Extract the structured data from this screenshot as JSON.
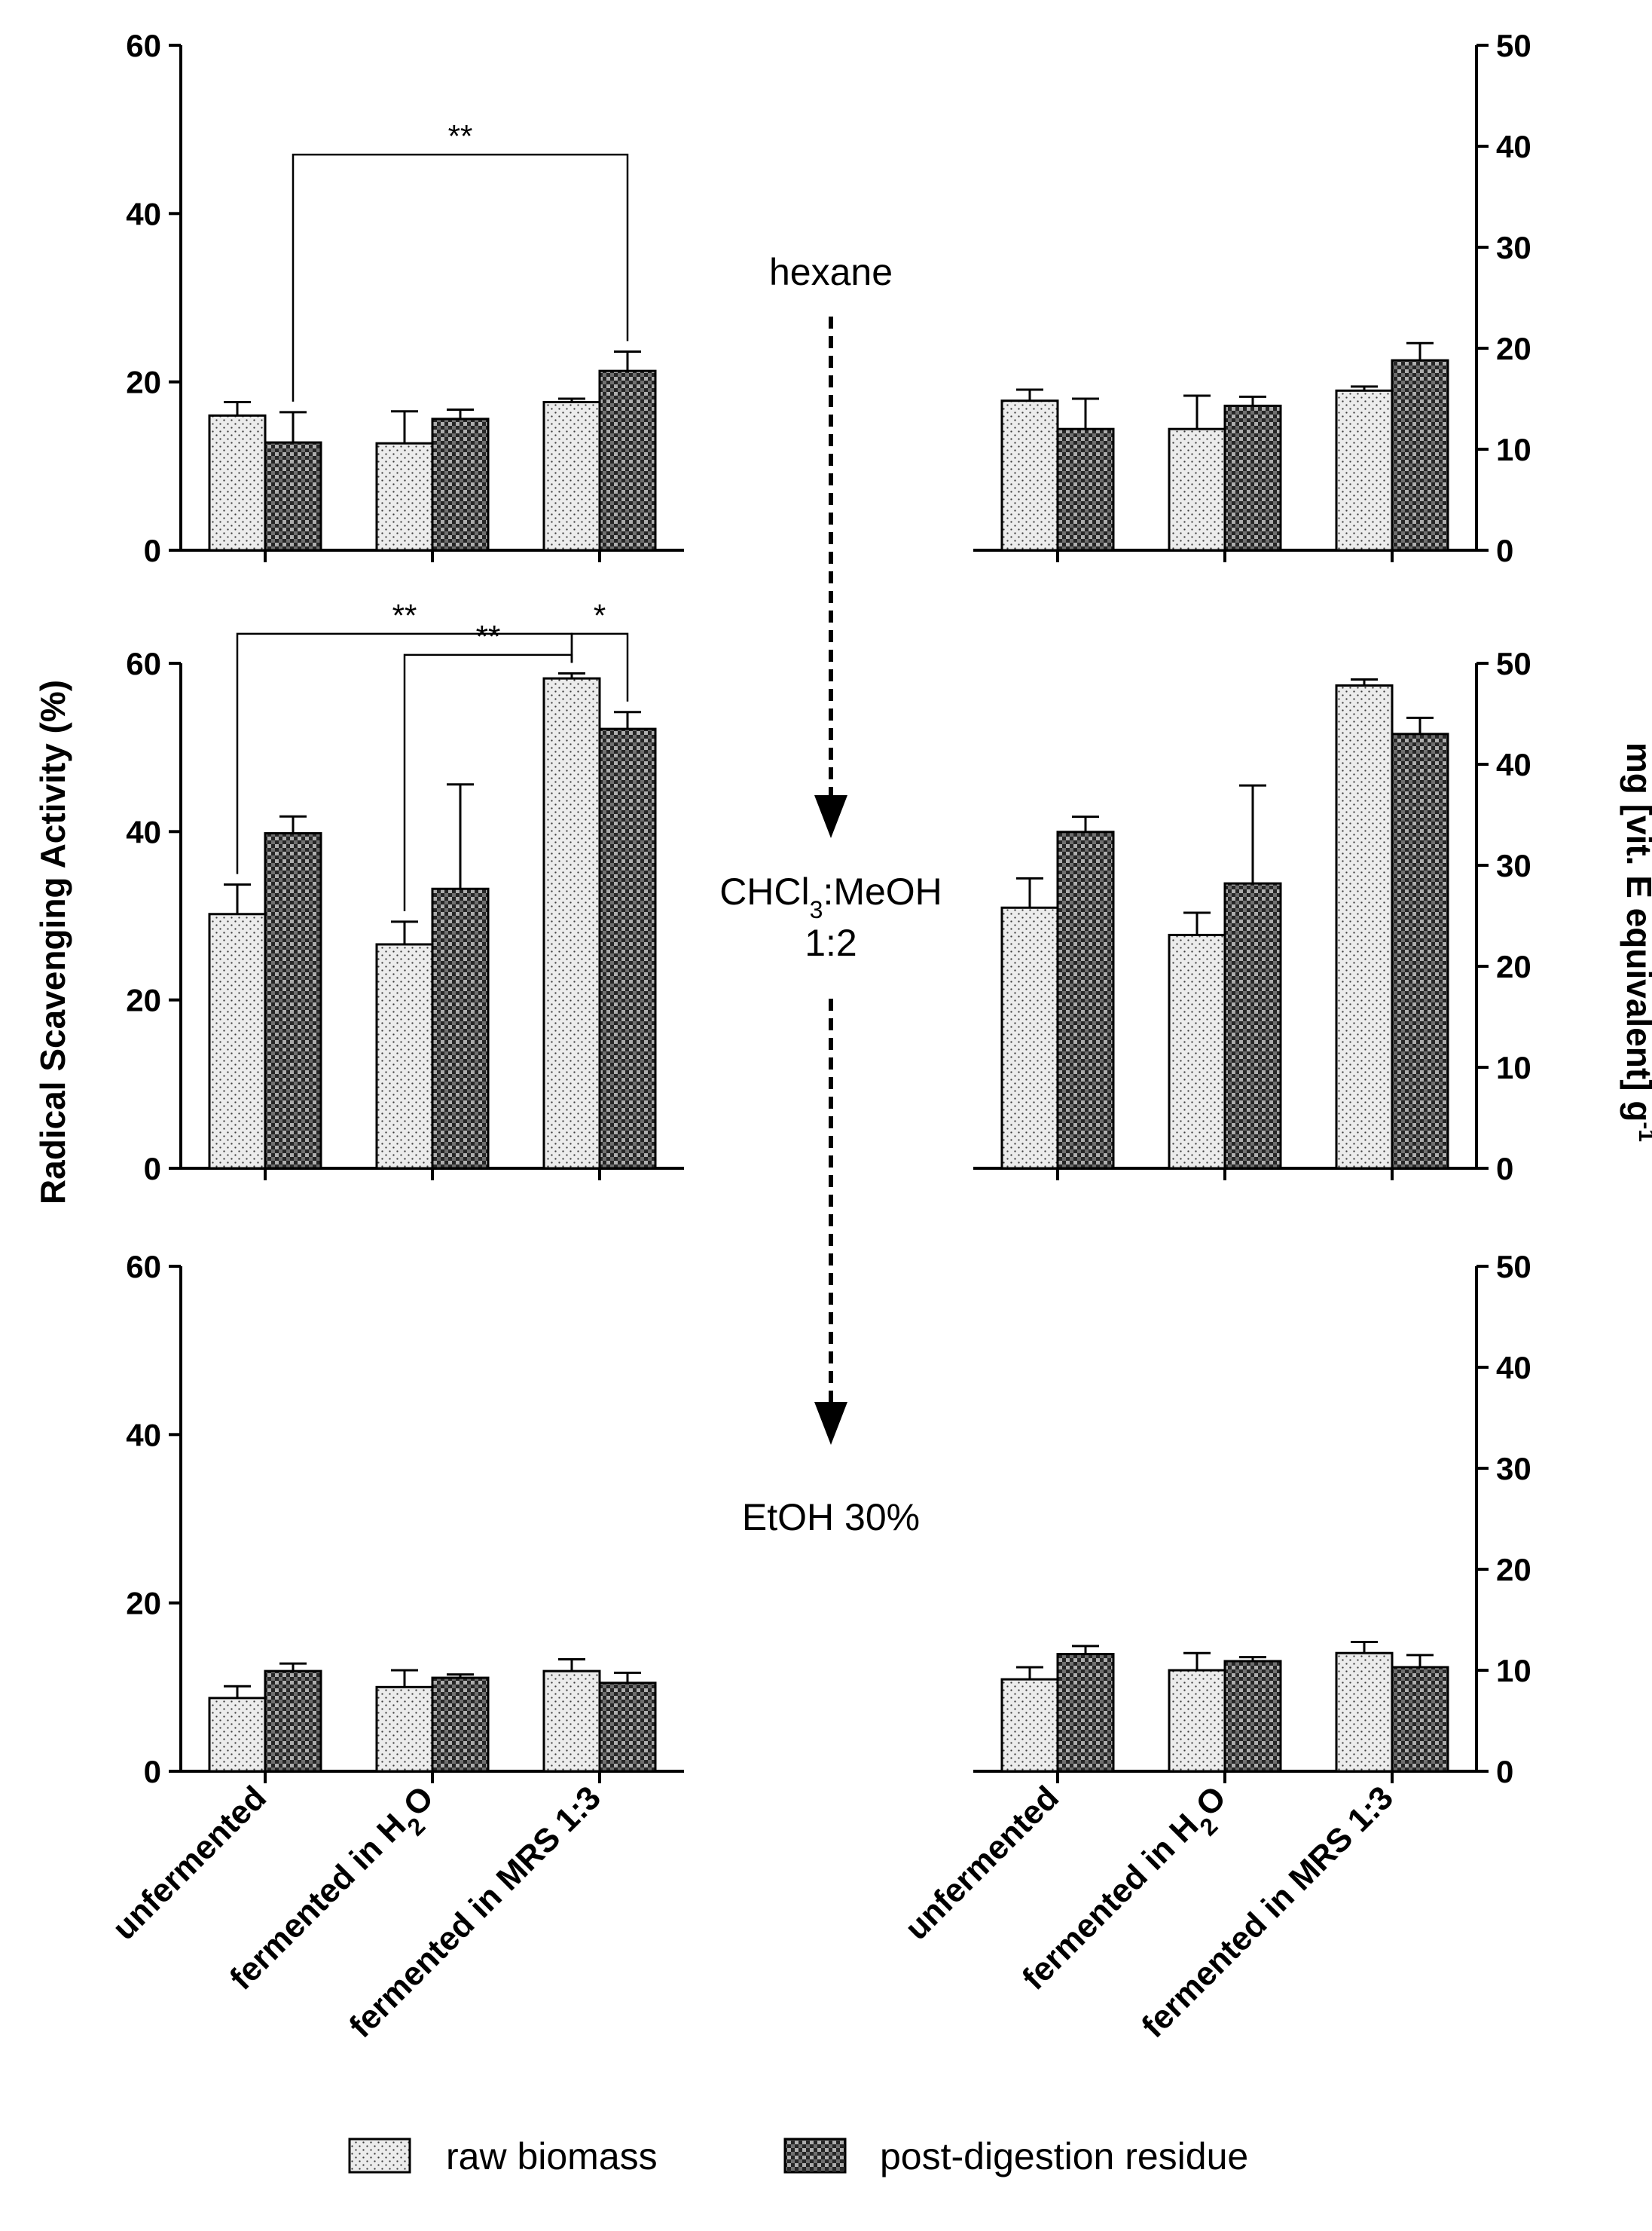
{
  "chart_data": {
    "type": "bar",
    "ylabel_left": "Radical Scavenging Activity (%)",
    "ylabel_right": {
      "main": "mg [vit. E equivalent] g",
      "sup": "-1"
    },
    "categories": [
      {
        "parts": [
          {
            "t": "unfermented"
          }
        ]
      },
      {
        "parts": [
          {
            "t": "fermented in H"
          },
          {
            "t": "2",
            "sub": true
          },
          {
            "t": "O"
          }
        ]
      },
      {
        "parts": [
          {
            "t": "fermented in MRS 1:3"
          }
        ]
      }
    ],
    "series_names": [
      "raw biomass",
      "post-digestion residue"
    ],
    "left_axis": {
      "ylim": [
        0,
        60
      ],
      "ticks": [
        "0",
        "20",
        "40",
        "60"
      ]
    },
    "right_axis": {
      "ylim": [
        0,
        50
      ],
      "ticks": [
        "0",
        "10",
        "20",
        "30",
        "40",
        "50"
      ]
    },
    "panels": [
      {
        "solvent": {
          "lines": [
            [
              {
                "t": "hexane"
              }
            ]
          ]
        },
        "left": {
          "series": [
            {
              "name": "raw biomass",
              "values": [
                16,
                12.7,
                17.6
              ],
              "errors": [
                1.6,
                3.8,
                0.4
              ]
            },
            {
              "name": "post-digestion residue",
              "values": [
                12.8,
                15.6,
                21.3
              ],
              "errors": [
                3.6,
                1.1,
                2.3
              ]
            }
          ]
        },
        "right": {
          "series": [
            {
              "name": "raw biomass",
              "values": [
                14.8,
                12,
                15.8
              ],
              "errors": [
                1.1,
                3.3,
                0.4
              ]
            },
            {
              "name": "post-digestion residue",
              "values": [
                12,
                14.3,
                18.8
              ],
              "errors": [
                3,
                0.9,
                1.7
              ]
            }
          ]
        },
        "significance": [
          {
            "label": "**",
            "from_cat": 0,
            "from_series": 1,
            "to_cat": 2,
            "to_series": 1,
            "level": 47
          }
        ]
      },
      {
        "solvent": {
          "lines": [
            [
              {
                "t": "CHCl"
              },
              {
                "t": "3",
                "sub": true
              },
              {
                "t": ":MeOH"
              }
            ],
            [
              {
                "t": "1:2"
              }
            ]
          ]
        },
        "left": {
          "series": [
            {
              "name": "raw biomass",
              "values": [
                30.2,
                26.6,
                58.2
              ],
              "errors": [
                3.5,
                2.7,
                0.6
              ]
            },
            {
              "name": "post-digestion residue",
              "values": [
                39.8,
                33.2,
                52.2
              ],
              "errors": [
                2,
                12.4,
                2
              ]
            }
          ]
        },
        "right": {
          "series": [
            {
              "name": "raw biomass",
              "values": [
                25.8,
                23.1,
                47.8
              ],
              "errors": [
                2.9,
                2.2,
                0.6
              ]
            },
            {
              "name": "post-digestion residue",
              "values": [
                33.3,
                28.2,
                43
              ],
              "errors": [
                1.5,
                9.7,
                1.6
              ]
            }
          ]
        },
        "significance": [
          {
            "label": "**",
            "from_cat": 0,
            "from_series": 0,
            "to_cat": 2,
            "to_series": 0,
            "level": 63.5
          },
          {
            "label": "**",
            "from_cat": 1,
            "from_series": 0,
            "to_cat": 2,
            "to_series": 0,
            "level": 61
          },
          {
            "label": "*",
            "from_cat": 2,
            "from_series": 0,
            "to_cat": 2,
            "to_series": 1,
            "level": 63.5
          }
        ]
      },
      {
        "solvent": {
          "lines": [
            [
              {
                "t": "EtOH 30%"
              }
            ]
          ]
        },
        "left": {
          "series": [
            {
              "name": "raw biomass",
              "values": [
                8.7,
                10,
                11.9
              ],
              "errors": [
                1.4,
                2,
                1.4
              ]
            },
            {
              "name": "post-digestion residue",
              "values": [
                11.9,
                11.1,
                10.5
              ],
              "errors": [
                0.9,
                0.4,
                1.2
              ]
            }
          ]
        },
        "right": {
          "series": [
            {
              "name": "raw biomass",
              "values": [
                9.1,
                10,
                11.7
              ],
              "errors": [
                1.2,
                1.7,
                1.1
              ]
            },
            {
              "name": "post-digestion residue",
              "values": [
                11.6,
                10.9,
                10.3
              ],
              "errors": [
                0.8,
                0.4,
                1.2
              ]
            }
          ]
        },
        "significance": []
      }
    ]
  },
  "colors": {
    "ink": "#000000",
    "raw_bar": "#ececec",
    "residue_bar": "#707070",
    "background": "#ffffff"
  }
}
